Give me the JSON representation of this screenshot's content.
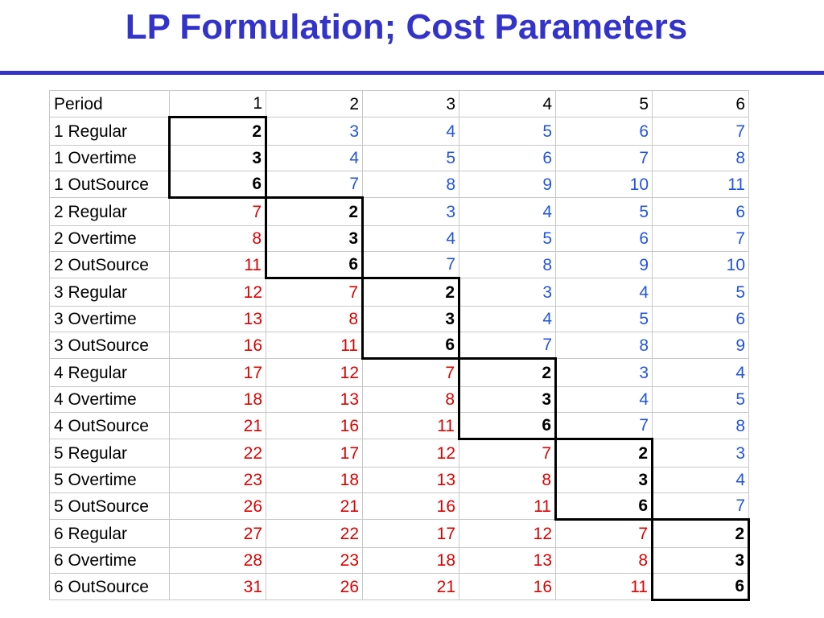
{
  "title": "LP Formulation; Cost Parameters",
  "table": {
    "header": [
      "Period",
      "1",
      "2",
      "3",
      "4",
      "5",
      "6"
    ],
    "rows": [
      {
        "label": "1 Regular",
        "values": [
          "2",
          "3",
          "4",
          "5",
          "6",
          "7"
        ]
      },
      {
        "label": "1 Overtime",
        "values": [
          "3",
          "4",
          "5",
          "6",
          "7",
          "8"
        ]
      },
      {
        "label": "1 OutSource",
        "values": [
          "6",
          "7",
          "8",
          "9",
          "10",
          "11"
        ]
      },
      {
        "label": "2 Regular",
        "values": [
          "7",
          "2",
          "3",
          "4",
          "5",
          "6"
        ]
      },
      {
        "label": "2 Overtime",
        "values": [
          "8",
          "3",
          "4",
          "5",
          "6",
          "7"
        ]
      },
      {
        "label": "2 OutSource",
        "values": [
          "11",
          "6",
          "7",
          "8",
          "9",
          "10"
        ]
      },
      {
        "label": "3 Regular",
        "values": [
          "12",
          "7",
          "2",
          "3",
          "4",
          "5"
        ]
      },
      {
        "label": "3 Overtime",
        "values": [
          "13",
          "8",
          "3",
          "4",
          "5",
          "6"
        ]
      },
      {
        "label": "3 OutSource",
        "values": [
          "16",
          "11",
          "6",
          "7",
          "8",
          "9"
        ]
      },
      {
        "label": "4 Regular",
        "values": [
          "17",
          "12",
          "7",
          "2",
          "3",
          "4"
        ]
      },
      {
        "label": "4 Overtime",
        "values": [
          "18",
          "13",
          "8",
          "3",
          "4",
          "5"
        ]
      },
      {
        "label": "4 OutSource",
        "values": [
          "21",
          "16",
          "11",
          "6",
          "7",
          "8"
        ]
      },
      {
        "label": "5 Regular",
        "values": [
          "22",
          "17",
          "12",
          "7",
          "2",
          "3"
        ]
      },
      {
        "label": "5 Overtime",
        "values": [
          "23",
          "18",
          "13",
          "8",
          "3",
          "4"
        ]
      },
      {
        "label": "5 OutSource",
        "values": [
          "26",
          "21",
          "16",
          "11",
          "6",
          "7"
        ]
      },
      {
        "label": "6 Regular",
        "values": [
          "27",
          "22",
          "17",
          "12",
          "7",
          "2"
        ]
      },
      {
        "label": "6 Overtime",
        "values": [
          "28",
          "23",
          "18",
          "13",
          "8",
          "3"
        ]
      },
      {
        "label": "6 OutSource",
        "values": [
          "31",
          "26",
          "21",
          "16",
          "11",
          "6"
        ]
      }
    ]
  },
  "colors": {
    "title": "#3333cc",
    "diagonal": "#000000",
    "above_diagonal": "#2255dd",
    "below_diagonal": "#dd0000"
  }
}
